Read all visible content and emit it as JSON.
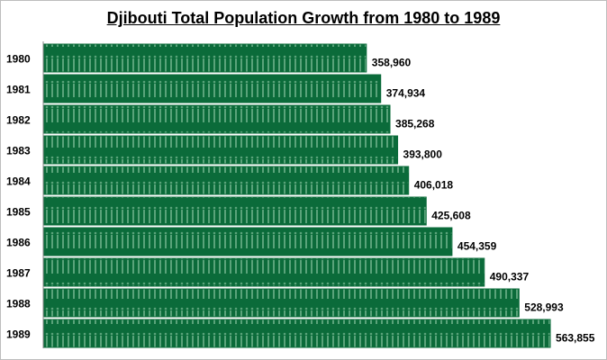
{
  "chart_data": {
    "type": "bar",
    "orientation": "horizontal",
    "title": "Djibouti Total Population Growth from 1980 to 1989",
    "categories": [
      "1980",
      "1981",
      "1982",
      "1983",
      "1984",
      "1985",
      "1986",
      "1987",
      "1988",
      "1989"
    ],
    "values": [
      358960,
      374934,
      385268,
      393800,
      406018,
      425608,
      454359,
      490337,
      528993,
      563855
    ],
    "data_labels": [
      "358,960",
      "374,934",
      "385,268",
      "393,800",
      "406,018",
      "425,608",
      "454,359",
      "490,337",
      "528,993",
      "563,855"
    ],
    "xlabel": "",
    "ylabel": "",
    "xlim": [
      0,
      620000
    ],
    "grid": false,
    "legend": "none",
    "bar_color": "#0b6b3a",
    "pattern_color": "#5aa37a"
  }
}
